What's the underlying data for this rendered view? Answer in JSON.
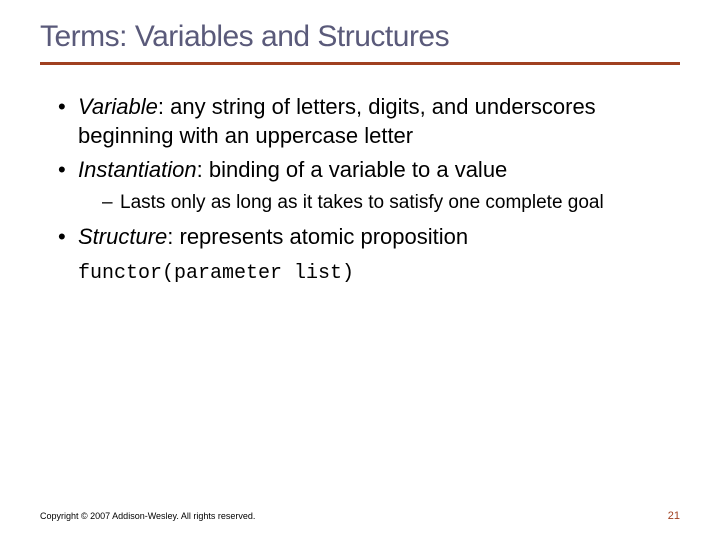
{
  "title": "Terms: Variables and Structures",
  "rule_color": "#a04020",
  "title_color": "#5a5a7a",
  "bullets": [
    {
      "term": "Variable",
      "def": ": any string of letters, digits, and underscores beginning with an uppercase letter"
    },
    {
      "term": "Instantiation",
      "def": ": binding of a variable to a value",
      "sub": [
        "Lasts only as long as it takes to satisfy one complete goal"
      ]
    },
    {
      "term": "Structure",
      "def": ": represents atomic proposition"
    }
  ],
  "code": "functor(parameter list)",
  "copyright": "Copyright © 2007 Addison-Wesley. All rights reserved.",
  "page_number": "21",
  "background_color": "#ffffff",
  "body_fontsize": 22,
  "sub_fontsize": 19,
  "title_fontsize": 30
}
